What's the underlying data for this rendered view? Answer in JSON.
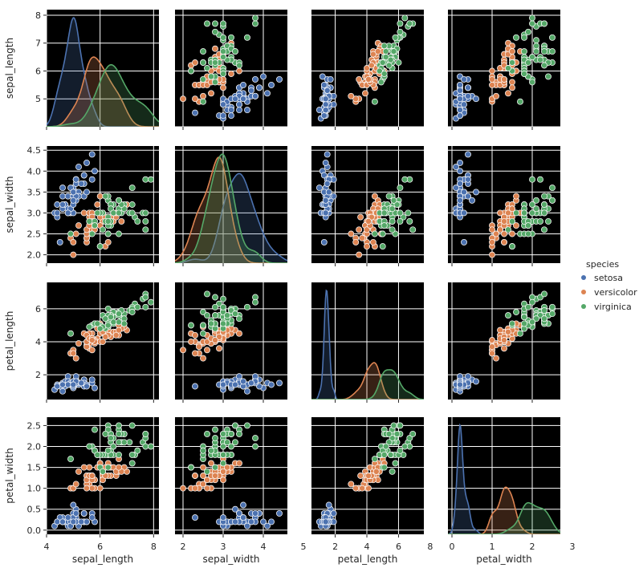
{
  "chart_data": {
    "type": "scatter",
    "subtype": "pairplot",
    "variables": [
      "sepal_length",
      "sepal_width",
      "petal_length",
      "petal_width"
    ],
    "diagonal": "kde",
    "axes": {
      "sepal_length": {
        "range": [
          4.0,
          8.2
        ],
        "ticks": [
          4,
          6,
          8
        ],
        "diag_ticks": [
          5,
          6,
          7,
          8
        ]
      },
      "sepal_width": {
        "range": [
          1.8,
          4.6
        ],
        "ticks": [
          2,
          3,
          4,
          5
        ],
        "ylabel_ticks": [
          "2.0",
          "2.5",
          "3.0",
          "3.5",
          "4.0",
          "4.5"
        ]
      },
      "petal_length": {
        "range": [
          0.5,
          7.6
        ],
        "ticks": [
          2,
          4,
          6,
          8
        ],
        "ylabel_ticks": [
          2,
          4,
          6
        ]
      },
      "petal_width": {
        "range": [
          -0.1,
          2.7
        ],
        "ticks": [
          0,
          1,
          2,
          3
        ],
        "ylabel_ticks": [
          "0.0",
          "0.5",
          "1.0",
          "1.5",
          "2.0",
          "2.5"
        ]
      }
    },
    "grid": true,
    "facecolor": "#000000",
    "legend": {
      "title": "species",
      "position": "right"
    },
    "series": [
      {
        "name": "setosa",
        "color": "#4c72b0",
        "sepal_length": [
          5.1,
          4.9,
          4.7,
          4.6,
          5.0,
          5.4,
          4.6,
          5.0,
          4.4,
          4.9,
          5.4,
          4.8,
          4.8,
          4.3,
          5.8,
          5.7,
          5.4,
          5.1,
          5.7,
          5.1,
          5.4,
          5.1,
          4.6,
          5.1,
          4.8,
          5.0,
          5.0,
          5.2,
          5.2,
          4.7,
          4.8,
          5.4,
          5.2,
          5.5,
          4.9,
          5.0,
          5.5,
          4.9,
          4.4,
          5.1,
          5.0,
          4.5,
          4.4,
          5.0,
          5.1,
          4.8,
          5.1,
          4.6,
          5.3,
          5.0
        ],
        "sepal_width": [
          3.5,
          3.0,
          3.2,
          3.1,
          3.6,
          3.9,
          3.4,
          3.4,
          2.9,
          3.1,
          3.7,
          3.4,
          3.0,
          3.0,
          4.0,
          4.4,
          3.9,
          3.5,
          3.8,
          3.8,
          3.4,
          3.7,
          3.6,
          3.3,
          3.4,
          3.0,
          3.4,
          3.5,
          3.4,
          3.2,
          3.1,
          3.4,
          4.1,
          4.2,
          3.1,
          3.2,
          3.5,
          3.6,
          3.0,
          3.4,
          3.5,
          2.3,
          3.2,
          3.5,
          3.8,
          3.0,
          3.8,
          3.2,
          3.7,
          3.3
        ],
        "petal_length": [
          1.4,
          1.4,
          1.3,
          1.5,
          1.4,
          1.7,
          1.4,
          1.5,
          1.4,
          1.5,
          1.5,
          1.6,
          1.4,
          1.1,
          1.2,
          1.5,
          1.3,
          1.4,
          1.7,
          1.5,
          1.7,
          1.5,
          1.0,
          1.7,
          1.9,
          1.6,
          1.6,
          1.5,
          1.4,
          1.6,
          1.6,
          1.5,
          1.5,
          1.4,
          1.5,
          1.2,
          1.3,
          1.4,
          1.3,
          1.5,
          1.3,
          1.3,
          1.3,
          1.6,
          1.9,
          1.4,
          1.6,
          1.4,
          1.5,
          1.4
        ],
        "petal_width": [
          0.2,
          0.2,
          0.2,
          0.2,
          0.2,
          0.4,
          0.3,
          0.2,
          0.2,
          0.1,
          0.2,
          0.2,
          0.1,
          0.1,
          0.2,
          0.4,
          0.4,
          0.3,
          0.3,
          0.3,
          0.2,
          0.4,
          0.2,
          0.5,
          0.2,
          0.2,
          0.4,
          0.2,
          0.2,
          0.2,
          0.2,
          0.4,
          0.1,
          0.2,
          0.2,
          0.2,
          0.2,
          0.1,
          0.2,
          0.2,
          0.3,
          0.3,
          0.2,
          0.6,
          0.4,
          0.3,
          0.2,
          0.2,
          0.2,
          0.2
        ]
      },
      {
        "name": "versicolor",
        "color": "#dd8452",
        "sepal_length": [
          7.0,
          6.4,
          6.9,
          5.5,
          6.5,
          5.7,
          6.3,
          4.9,
          6.6,
          5.2,
          5.0,
          5.9,
          6.0,
          6.1,
          5.6,
          6.7,
          5.6,
          5.8,
          6.2,
          5.6,
          5.9,
          6.1,
          6.3,
          6.1,
          6.4,
          6.6,
          6.8,
          6.7,
          6.0,
          5.7,
          5.5,
          5.5,
          5.8,
          6.0,
          5.4,
          6.0,
          6.7,
          6.3,
          5.6,
          5.5,
          5.5,
          6.1,
          5.8,
          5.0,
          5.6,
          5.7,
          5.7,
          6.2,
          5.1,
          5.7
        ],
        "sepal_width": [
          3.2,
          3.2,
          3.1,
          2.3,
          2.8,
          2.8,
          3.3,
          2.4,
          2.9,
          2.7,
          2.0,
          3.0,
          2.2,
          2.9,
          2.9,
          3.1,
          3.0,
          2.7,
          2.2,
          2.5,
          3.2,
          2.8,
          2.5,
          2.8,
          2.9,
          3.0,
          2.8,
          3.0,
          2.9,
          2.6,
          2.4,
          2.4,
          2.7,
          2.7,
          3.0,
          3.4,
          3.1,
          2.3,
          3.0,
          2.5,
          2.6,
          3.0,
          2.6,
          2.3,
          2.7,
          3.0,
          2.9,
          2.9,
          2.5,
          2.8
        ],
        "petal_length": [
          4.7,
          4.5,
          4.9,
          4.0,
          4.6,
          4.5,
          4.7,
          3.3,
          4.6,
          3.9,
          3.5,
          4.2,
          4.0,
          4.7,
          3.6,
          4.4,
          4.5,
          4.1,
          4.5,
          3.9,
          4.8,
          4.0,
          4.9,
          4.7,
          4.3,
          4.4,
          4.8,
          5.0,
          4.5,
          3.5,
          3.8,
          3.7,
          3.9,
          5.1,
          4.5,
          4.5,
          4.7,
          4.4,
          4.1,
          4.0,
          4.4,
          4.6,
          4.0,
          3.3,
          4.2,
          4.2,
          4.2,
          4.3,
          3.0,
          4.1
        ],
        "petal_width": [
          1.4,
          1.5,
          1.5,
          1.3,
          1.5,
          1.3,
          1.6,
          1.0,
          1.3,
          1.4,
          1.0,
          1.5,
          1.0,
          1.4,
          1.3,
          1.4,
          1.5,
          1.0,
          1.5,
          1.1,
          1.8,
          1.3,
          1.5,
          1.2,
          1.3,
          1.4,
          1.4,
          1.7,
          1.5,
          1.0,
          1.1,
          1.0,
          1.2,
          1.6,
          1.5,
          1.6,
          1.5,
          1.3,
          1.3,
          1.3,
          1.2,
          1.4,
          1.2,
          1.0,
          1.3,
          1.2,
          1.3,
          1.3,
          1.1,
          1.3
        ]
      },
      {
        "name": "virginica",
        "color": "#55a868",
        "sepal_length": [
          6.3,
          5.8,
          7.1,
          6.3,
          6.5,
          7.6,
          4.9,
          7.3,
          6.7,
          7.2,
          6.5,
          6.4,
          6.8,
          5.7,
          5.8,
          6.4,
          6.5,
          7.7,
          7.7,
          6.0,
          6.9,
          5.6,
          7.7,
          6.3,
          6.7,
          7.2,
          6.2,
          6.1,
          6.4,
          7.2,
          7.4,
          7.9,
          6.4,
          6.3,
          6.1,
          7.7,
          6.3,
          6.4,
          6.0,
          6.9,
          6.7,
          6.9,
          5.8,
          6.8,
          6.7,
          6.7,
          6.3,
          6.5,
          6.2,
          5.9
        ],
        "sepal_width": [
          3.3,
          2.7,
          3.0,
          2.9,
          3.0,
          3.0,
          2.5,
          2.9,
          2.5,
          3.6,
          3.2,
          2.7,
          3.0,
          2.5,
          2.8,
          3.2,
          3.0,
          3.8,
          2.6,
          2.2,
          3.2,
          2.8,
          2.8,
          2.7,
          3.3,
          3.2,
          2.8,
          3.0,
          2.8,
          3.0,
          2.8,
          3.8,
          2.8,
          2.8,
          2.6,
          3.0,
          3.4,
          3.1,
          3.0,
          3.1,
          3.1,
          3.1,
          2.7,
          3.2,
          3.3,
          3.0,
          2.5,
          3.0,
          3.4,
          3.0
        ],
        "petal_length": [
          6.0,
          5.1,
          5.9,
          5.6,
          5.8,
          6.6,
          4.5,
          6.3,
          5.8,
          6.1,
          5.1,
          5.3,
          5.5,
          5.0,
          5.1,
          5.3,
          5.5,
          6.7,
          6.9,
          5.0,
          5.7,
          4.9,
          6.7,
          4.9,
          5.7,
          6.0,
          4.8,
          4.9,
          5.6,
          5.8,
          6.1,
          6.4,
          5.6,
          5.1,
          5.6,
          6.1,
          5.6,
          5.5,
          4.8,
          5.4,
          5.6,
          5.1,
          5.1,
          5.9,
          5.7,
          5.2,
          5.0,
          5.2,
          5.4,
          5.1
        ],
        "petal_width": [
          2.5,
          1.9,
          2.1,
          1.8,
          2.2,
          2.1,
          1.7,
          1.8,
          1.8,
          2.5,
          2.0,
          1.9,
          2.1,
          2.0,
          2.4,
          2.3,
          1.8,
          2.2,
          2.3,
          1.5,
          2.3,
          2.0,
          2.0,
          1.8,
          2.1,
          1.8,
          1.8,
          1.8,
          2.1,
          1.6,
          1.9,
          2.0,
          2.2,
          1.5,
          1.4,
          2.3,
          2.4,
          1.8,
          1.8,
          2.1,
          2.4,
          2.3,
          1.9,
          2.3,
          2.5,
          2.3,
          1.9,
          2.0,
          2.3,
          1.8
        ]
      }
    ]
  }
}
